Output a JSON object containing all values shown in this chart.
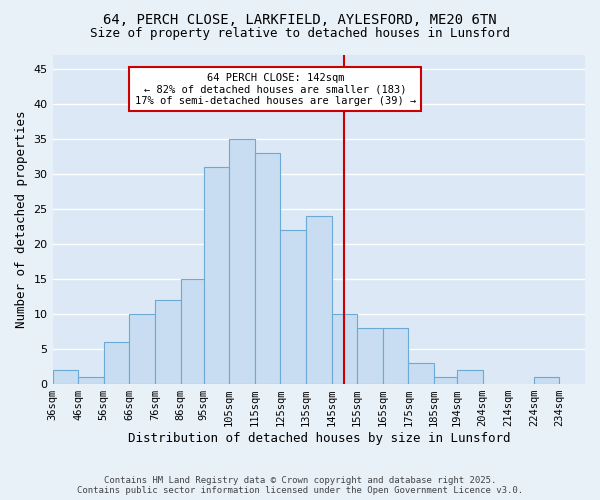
{
  "title_line1": "64, PERCH CLOSE, LARKFIELD, AYLESFORD, ME20 6TN",
  "title_line2": "Size of property relative to detached houses in Lunsford",
  "xlabel": "Distribution of detached houses by size in Lunsford",
  "ylabel": "Number of detached properties",
  "footnote": "Contains HM Land Registry data © Crown copyright and database right 2025.\nContains public sector information licensed under the Open Government Licence v3.0.",
  "bin_labels": [
    "36sqm",
    "46sqm",
    "56sqm",
    "66sqm",
    "76sqm",
    "86sqm",
    "95sqm",
    "105sqm",
    "115sqm",
    "125sqm",
    "135sqm",
    "145sqm",
    "155sqm",
    "165sqm",
    "175sqm",
    "185sqm",
    "194sqm",
    "204sqm",
    "214sqm",
    "224sqm",
    "234sqm"
  ],
  "bar_values": [
    2,
    1,
    6,
    10,
    12,
    15,
    31,
    35,
    33,
    22,
    24,
    10,
    8,
    8,
    3,
    1,
    2,
    0,
    0,
    1,
    0
  ],
  "bar_color": "#c8ddf2",
  "bar_edge_color": "#6aaad4",
  "reference_line_x": 145,
  "bin_edges": [
    31,
    41,
    51,
    61,
    71,
    81,
    90,
    100,
    110,
    120,
    130,
    140,
    150,
    160,
    170,
    180,
    189,
    199,
    209,
    219,
    229,
    239
  ],
  "annotation_text": "64 PERCH CLOSE: 142sqm\n← 82% of detached houses are smaller (183)\n17% of semi-detached houses are larger (39) →",
  "ylim": [
    0,
    47
  ],
  "yticks": [
    0,
    5,
    10,
    15,
    20,
    25,
    30,
    35,
    40,
    45
  ],
  "background_color": "#e8f0f8",
  "plot_background": "#dce8f5",
  "grid_color": "#ffffff",
  "annotation_box_color": "#ffffff",
  "annotation_box_edge": "#cc0000",
  "ref_line_color": "#cc0000",
  "title_fontsize": 10,
  "subtitle_fontsize": 9,
  "ylabel_fontsize": 9,
  "xlabel_fontsize": 9,
  "tick_fontsize": 7.5,
  "annot_fontsize": 7.5,
  "footnote_fontsize": 6.5
}
